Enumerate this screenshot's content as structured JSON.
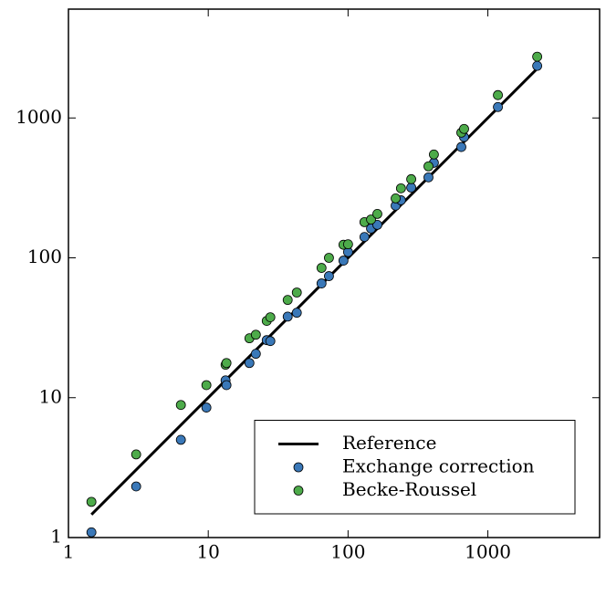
{
  "chart_data": {
    "type": "scatter",
    "log_x": true,
    "log_y": true,
    "xlim": [
      1,
      6300
    ],
    "ylim": [
      1,
      6000
    ],
    "xticks": [
      1,
      10,
      100,
      1000
    ],
    "yticks": [
      1,
      10,
      100,
      1000
    ],
    "legend": "lower right",
    "series": [
      {
        "name": "Reference",
        "type": "line",
        "color": "#000000",
        "x": [
          1.46,
          2250
        ],
        "values": [
          1.46,
          2250
        ]
      },
      {
        "name": "Exchange correction",
        "type": "scatter",
        "color": "#3a78b8",
        "x": [
          1.46,
          3.05,
          6.37,
          9.7,
          13.3,
          13.5,
          19.7,
          21.9,
          26.2,
          27.8,
          37,
          43,
          64.6,
          73,
          92.7,
          100,
          131,
          146,
          162,
          219,
          239,
          283,
          376,
          411,
          646,
          676,
          1180,
          2254
        ],
        "values": [
          1.09,
          2.32,
          5.0,
          8.5,
          13.3,
          12.3,
          17.7,
          20.6,
          25.8,
          25.4,
          38,
          40.5,
          65.6,
          74,
          95.5,
          110,
          141,
          162,
          172,
          236,
          258,
          318,
          376,
          478,
          620,
          730,
          1197,
          2359
        ]
      },
      {
        "name": "Becke-Roussel",
        "type": "scatter",
        "color": "#4dab4a",
        "x": [
          1.46,
          3.05,
          6.37,
          9.7,
          13.3,
          13.5,
          19.7,
          21.9,
          26.2,
          27.8,
          37,
          43,
          64.6,
          73,
          92.7,
          100,
          131,
          146,
          162,
          219,
          239,
          283,
          376,
          411,
          646,
          676,
          1180,
          2254
        ],
        "values": [
          1.8,
          3.93,
          8.87,
          12.3,
          17.2,
          17.7,
          26.6,
          28.2,
          35.4,
          37.6,
          50,
          56.5,
          84.7,
          100,
          124,
          125,
          180,
          188,
          206,
          266,
          314,
          365,
          451,
          548,
          785,
          835,
          1457,
          2742
        ]
      }
    ]
  }
}
